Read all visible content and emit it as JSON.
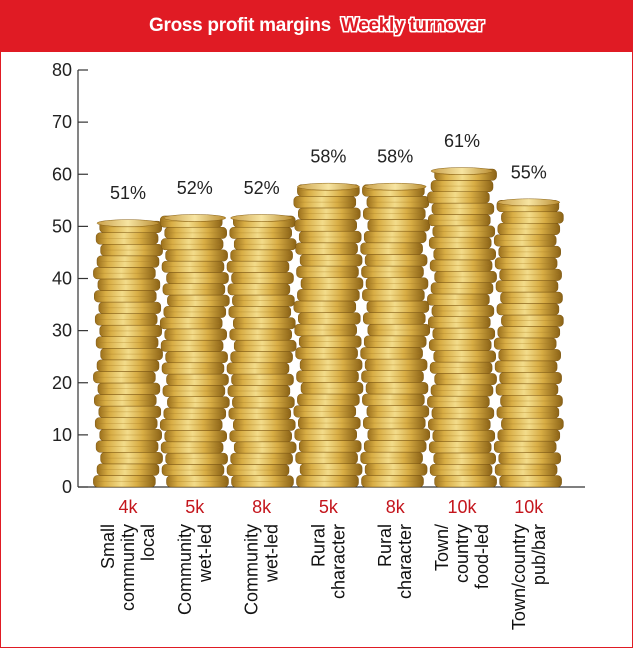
{
  "header": {
    "title_left": "Gross profit margins",
    "title_right": "Weekly turnover"
  },
  "colors": {
    "accent": "#e01b24",
    "turnover_text": "#c4151c",
    "coin_light": "#f3dc8a",
    "coin_mid": "#d8ad44",
    "coin_dark": "#9a6f1c"
  },
  "chart_data": {
    "type": "bar",
    "title": "Gross profit margins",
    "subtitle": "Weekly turnover",
    "categories": [
      [
        "Small",
        "community",
        "local"
      ],
      [
        "Community",
        "wet-led"
      ],
      [
        "Community",
        "wet-led"
      ],
      [
        "Rural",
        "character"
      ],
      [
        "Rural",
        "character"
      ],
      [
        "Town/",
        "country",
        "food-led"
      ],
      [
        "Town/country",
        "pub/bar"
      ]
    ],
    "values": [
      51,
      52,
      52,
      58,
      58,
      61,
      55
    ],
    "value_labels": [
      "51%",
      "52%",
      "52%",
      "58%",
      "58%",
      "61%",
      "55%"
    ],
    "turnover": [
      "4k",
      "5k",
      "8k",
      "5k",
      "8k",
      "10k",
      "10k"
    ],
    "yticks": [
      0,
      10,
      20,
      30,
      40,
      50,
      60,
      70,
      80
    ],
    "ylim": [
      0,
      80
    ],
    "grid": false,
    "legend": "none",
    "bar_style": "coin stacks"
  }
}
